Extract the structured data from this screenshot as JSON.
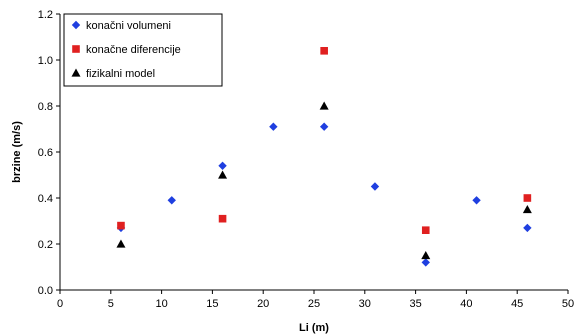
{
  "chart_data": {
    "type": "scatter",
    "title": "",
    "xlabel": "Li (m)",
    "ylabel": "brzine (m/s)",
    "xlim": [
      0,
      50
    ],
    "ylim": [
      0,
      1.2
    ],
    "xticks": [
      0,
      5,
      10,
      15,
      20,
      25,
      30,
      35,
      40,
      45,
      50
    ],
    "yticks": [
      0.0,
      0.2,
      0.4,
      0.6,
      0.8,
      1.0,
      1.2
    ],
    "ytick_labels": [
      "0.0",
      "0.2",
      "0.4",
      "0.6",
      "0.8",
      "1.0",
      "1.2"
    ],
    "grid": false,
    "legend_position": "top-left",
    "series": [
      {
        "name": "konačni volumeni",
        "marker": "diamond",
        "color": "#1f3fe0",
        "x": [
          6,
          11,
          16,
          21,
          26,
          31,
          36,
          41,
          46
        ],
        "y": [
          0.27,
          0.39,
          0.54,
          0.71,
          0.71,
          0.45,
          0.12,
          0.39,
          0.27
        ]
      },
      {
        "name": "konačne diferencije",
        "marker": "square",
        "color": "#e02020",
        "x": [
          6,
          16,
          26,
          36,
          46
        ],
        "y": [
          0.28,
          0.31,
          1.04,
          0.26,
          0.4
        ]
      },
      {
        "name": "fizikalni model",
        "marker": "triangle",
        "color": "#000000",
        "x": [
          6,
          16,
          26,
          36,
          46
        ],
        "y": [
          0.2,
          0.5,
          0.8,
          0.15,
          0.35
        ]
      }
    ]
  }
}
